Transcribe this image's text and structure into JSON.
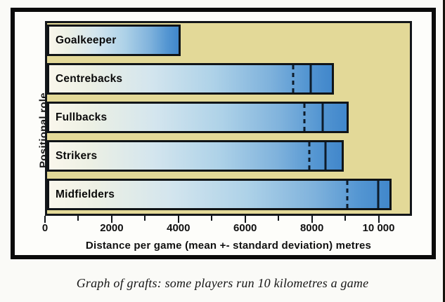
{
  "figure": {
    "y_axis_label": "Positional role",
    "x_axis_label": "Distance per game (mean +- standard deviation) metres",
    "caption": "Graph of grafts: some players run 10 kilometres a game"
  },
  "chart_data": {
    "type": "bar",
    "orientation": "horizontal",
    "title": "",
    "xlabel": "Distance per game (mean +- standard deviation) metres",
    "ylabel": "Positional role",
    "xlim": [
      0,
      11000
    ],
    "x_major_ticks": [
      0,
      2000,
      4000,
      6000,
      8000,
      10000
    ],
    "x_tick_labels": [
      "0",
      "2000",
      "4000",
      "6000",
      "8000",
      "10 000"
    ],
    "x_minor_ticks": [
      1000,
      3000,
      5000,
      7000,
      9000
    ],
    "categories": [
      "Goalkeeper",
      "Centrebacks",
      "Fullbacks",
      "Strikers",
      "Midfielders"
    ],
    "series": [
      {
        "role": "Goalkeeper",
        "bar_end_metres": 4050,
        "mean_line_metres": null,
        "lower_sd_line_metres": null
      },
      {
        "role": "Centrebacks",
        "bar_end_metres": 8700,
        "mean_line_metres": 8050,
        "lower_sd_line_metres": 7500
      },
      {
        "role": "Fullbacks",
        "bar_end_metres": 9150,
        "mean_line_metres": 8400,
        "lower_sd_line_metres": 7850
      },
      {
        "role": "Strikers",
        "bar_end_metres": 9000,
        "mean_line_metres": 8500,
        "lower_sd_line_metres": 8000
      },
      {
        "role": "Midfielders",
        "bar_end_metres": 10450,
        "mean_line_metres": 10100,
        "lower_sd_line_metres": 9150
      }
    ],
    "grid": false,
    "legend": false,
    "encoding_note": "bar end = mean + SD, solid line = mean, dashed line = mean - SD"
  },
  "colors": {
    "plot_background": "#e3d998",
    "bar_gradient_start": "#faf7ec",
    "bar_gradient_end": "#4187cb",
    "sd_line": "#0d1c2b",
    "border": "#0b0b0b"
  }
}
